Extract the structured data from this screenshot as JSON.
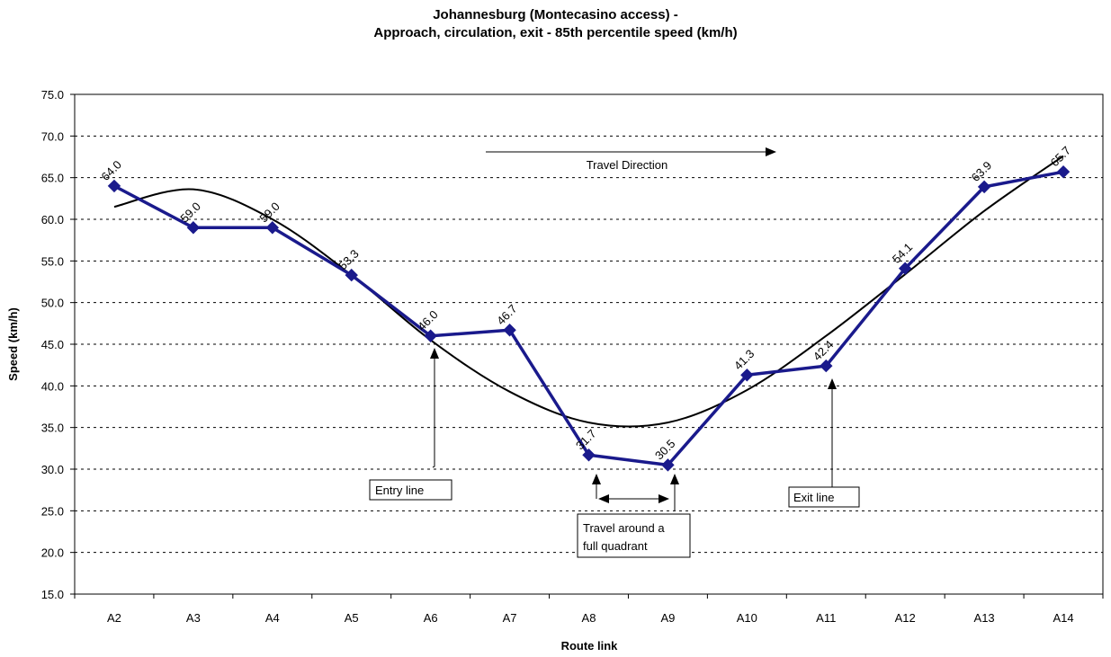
{
  "chart_data": {
    "type": "line",
    "title_lines": [
      "Johannesburg (Montecasino access) -",
      "Approach, circulation, exit - 85th percentile speed (km/h)"
    ],
    "xlabel": "Route link",
    "ylabel": "Speed (km/h)",
    "categories": [
      "A2",
      "A3",
      "A4",
      "A5",
      "A6",
      "A7",
      "A8",
      "A9",
      "A10",
      "A11",
      "A12",
      "A13",
      "A14"
    ],
    "series": [
      {
        "values": [
          64.0,
          59.0,
          59.0,
          53.3,
          46.0,
          46.7,
          31.7,
          30.5,
          41.3,
          42.4,
          54.1,
          63.9,
          65.7
        ],
        "value_labels": [
          "64.0",
          "59.0",
          "59.0",
          "53.3",
          "46.0",
          "46.7",
          "31.7",
          "30.5",
          "41.3",
          "42.4",
          "54.1",
          "63.9",
          "65.7"
        ],
        "color": "#1a1a8c"
      }
    ],
    "trend": {
      "values": [
        61.5,
        63.6,
        60.0,
        53.3,
        45.5,
        39.3,
        35.6,
        35.6,
        39.5,
        46.0,
        53.4,
        61.0,
        67.6
      ],
      "color": "#000000"
    },
    "ylim": [
      15.0,
      75.0
    ],
    "yticks": [
      "15.0",
      "20.0",
      "25.0",
      "30.0",
      "35.0",
      "40.0",
      "45.0",
      "50.0",
      "55.0",
      "60.0",
      "65.0",
      "70.0",
      "75.0"
    ],
    "grid": true,
    "annotations": {
      "travel_direction": "Travel Direction",
      "entry_line": "Entry line",
      "exit_line": "Exit line",
      "quadrant_line1": "Travel around a",
      "quadrant_line2": "full quadrant"
    }
  }
}
